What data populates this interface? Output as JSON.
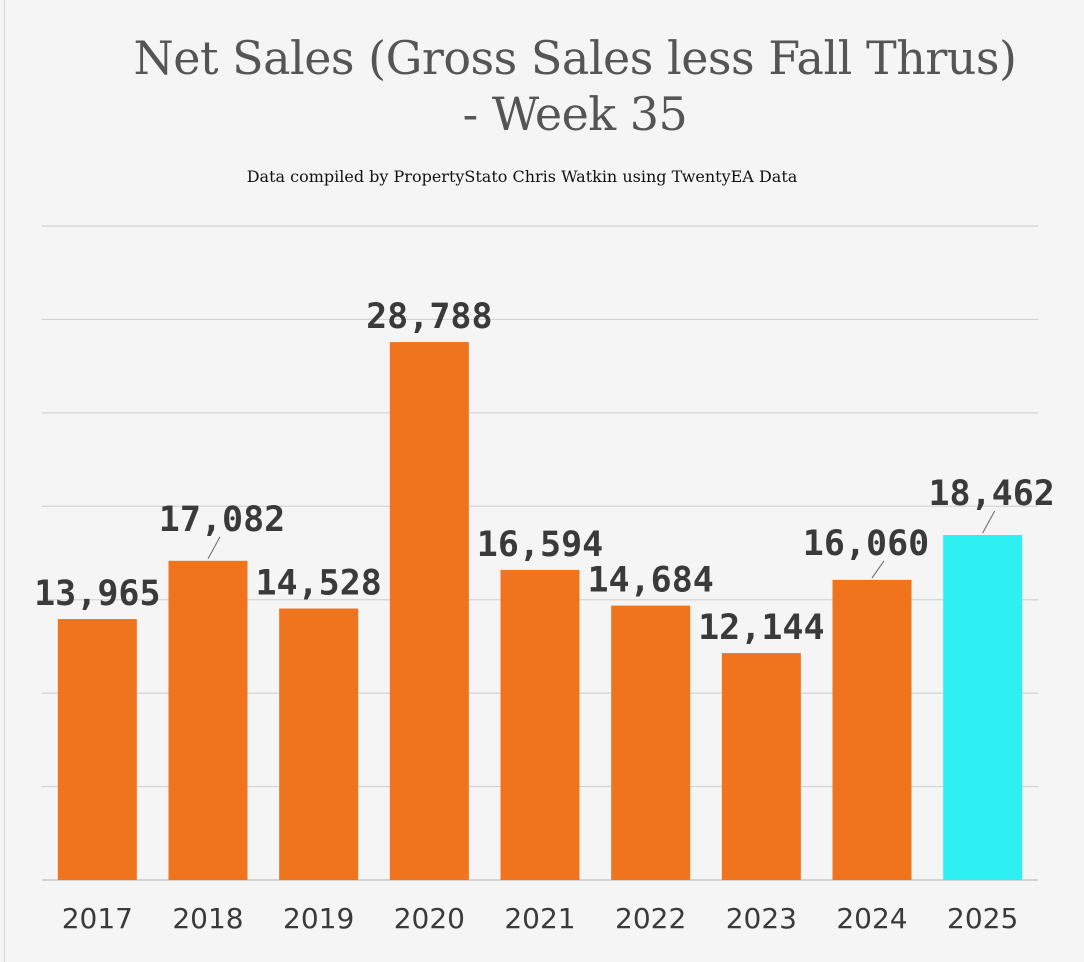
{
  "chart_data": {
    "type": "bar",
    "title_line1": "Net Sales (Gross Sales less Fall Thrus)",
    "title_line2": "- Week 35",
    "subtitle": "Data compiled by PropertyStato Chris Watkin using TwentyEA Data",
    "categories": [
      "2017",
      "2018",
      "2019",
      "2020",
      "2021",
      "2022",
      "2023",
      "2024",
      "2025"
    ],
    "values": [
      13965,
      17082,
      14528,
      28788,
      16594,
      14684,
      12144,
      16060,
      18462
    ],
    "value_labels": [
      "13,965",
      "17,082",
      "14,528",
      "28,788",
      "16,594",
      "14,684",
      "12,144",
      "16,060",
      "18,462"
    ],
    "ylim": [
      0,
      35000
    ],
    "grid": true,
    "xlabel": "",
    "ylabel": "",
    "colors": {
      "default_bar": "#f0731e",
      "highlight_bar": "#2ef0f2",
      "gridline": "#d4d4d4",
      "axis": "#c8c8c8",
      "leader_line": "#666666"
    },
    "highlight_index": 8
  }
}
